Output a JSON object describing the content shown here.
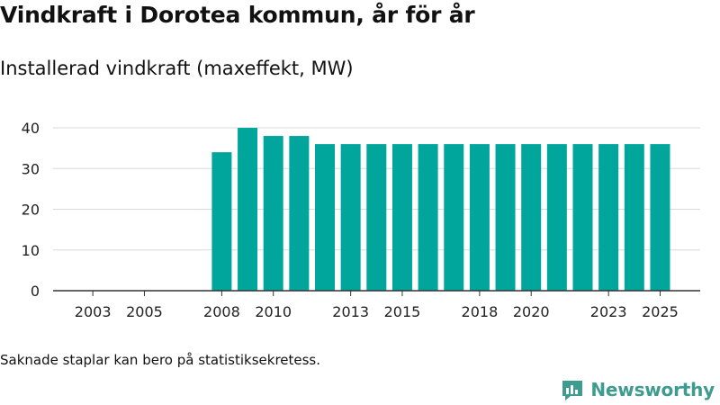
{
  "header": {
    "title": "Vindkraft i Dorotea kommun, år för år",
    "subtitle": "Installerad vindkraft (maxeffekt, MW)"
  },
  "footer": {
    "note": "Saknade staplar kan bero på statistiksekretess.",
    "brand": "Newsworthy"
  },
  "colors": {
    "bar": "#00a69c",
    "grid": "#d9d9d9",
    "axis": "#333333",
    "brand": "#3d9b8f"
  },
  "chart_data": {
    "type": "bar",
    "title": "Installerad vindkraft (maxeffekt, MW)",
    "xlabel": "",
    "ylabel": "",
    "categories": [
      "2002",
      "2003",
      "2004",
      "2005",
      "2006",
      "2007",
      "2008",
      "2009",
      "2010",
      "2011",
      "2012",
      "2013",
      "2014",
      "2015",
      "2016",
      "2017",
      "2018",
      "2019",
      "2020",
      "2021",
      "2022",
      "2023",
      "2024",
      "2025"
    ],
    "values": [
      null,
      null,
      null,
      null,
      null,
      null,
      34,
      40,
      38,
      38,
      36,
      36,
      36,
      36,
      36,
      36,
      36,
      36,
      36,
      36,
      36,
      36,
      36,
      36
    ],
    "x_tick_labels": [
      "2003",
      "2005",
      "2008",
      "2010",
      "2013",
      "2015",
      "2018",
      "2020",
      "2023",
      "2025"
    ],
    "y_ticks": [
      0,
      10,
      20,
      30,
      40
    ],
    "ylim": [
      0,
      40
    ],
    "grid": true,
    "legend": "none"
  }
}
